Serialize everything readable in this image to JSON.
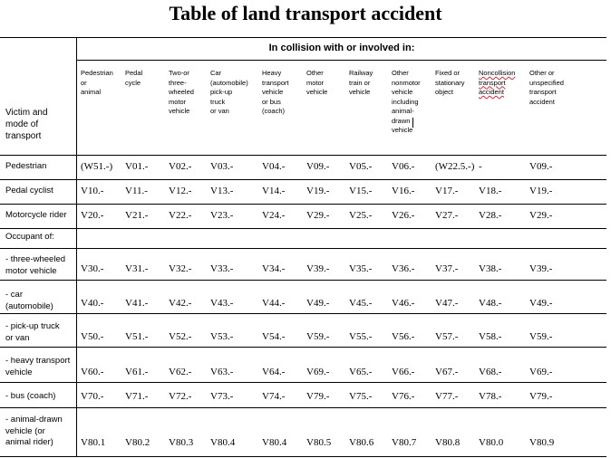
{
  "title": "Table of land transport accident",
  "group_header": "In collision with or involved in:",
  "victim_header": "Victim and\nmode of\ntransport",
  "columns": [
    "Pedestrian\nor\nanimal",
    "Pedal\ncycle",
    "Two-or\nthree-\nwheeled\nmotor\nvehicle",
    "Car\n(automobile)\npick-up\ntruck\nor van",
    "Heavy\ntransport\nvehicle\nor bus\n(coach)",
    "Other\nmotor\nvehicle",
    "Railway\ntrain or\nvehicle",
    "Other\nnonmotor\nvehicle\nincluding\nanimal-\ndrawn\nvehicle",
    "Fixed or\nstationary\nobject",
    "Noncollision\ntransport\naccident",
    "Other or\nunspecified\ntransport\naccident"
  ],
  "rows": [
    {
      "label": "Pedestrian",
      "codes": [
        "(W51.-)",
        "V01.-",
        "V02.-",
        "V03.-",
        "V04.-",
        "V09.-",
        "V05.-",
        "V06.-",
        "(W22.5.-)",
        "-",
        "V09.-"
      ]
    },
    {
      "label": "Pedal cyclist",
      "codes": [
        "V10.-",
        "V11.-",
        "V12.-",
        "V13.-",
        "V14.-",
        "V19.-",
        "V15.-",
        "V16.-",
        "V17.-",
        "V18.-",
        "V19.-"
      ]
    },
    {
      "label": "Motorcycle rider",
      "codes": [
        "V20.-",
        "V21.-",
        "V22.-",
        "V23.-",
        "V24.-",
        "V29.-",
        "V25.-",
        "V26.-",
        "V27.-",
        "V28.-",
        "V29.-"
      ]
    },
    {
      "label": "Occupant of:",
      "codes": []
    },
    {
      "label": "- three-wheeled\n  motor vehicle",
      "codes": [
        "V30.-",
        "V31.-",
        "V32.-",
        "V33.-",
        "V34.-",
        "V39.-",
        "V35.-",
        "V36.-",
        "V37.-",
        "V38.-",
        "V39.-"
      ]
    },
    {
      "label": "- car\n  (automobile)",
      "codes": [
        "V40.-",
        "V41.-",
        "V42.-",
        "V43.-",
        "V44.-",
        "V49.-",
        "V45.-",
        "V46.-",
        "V47.-",
        "V48.-",
        "V49.-"
      ]
    },
    {
      "label": "- pick-up truck\n  or van",
      "codes": [
        "V50.-",
        "V51.-",
        "V52.-",
        "V53.-",
        "V54.-",
        "V59.-",
        "V55.-",
        "V56.-",
        "V57.-",
        "V58.-",
        "V59.-"
      ]
    },
    {
      "label": "- heavy transport\n  vehicle",
      "codes": [
        "V60.-",
        "V61.-",
        "V62.-",
        "V63.-",
        "V64.-",
        "V69.-",
        "V65.-",
        "V66.-",
        "V67.-",
        "V68.-",
        "V69.-"
      ]
    },
    {
      "label": "- bus (coach)",
      "codes": [
        "V70.-",
        "V71.-",
        "V72.-",
        "V73.-",
        "V74.-",
        "V79.-",
        "V75.-",
        "V76.-",
        "V77.-",
        "V78.-",
        "V79.-"
      ]
    },
    {
      "label": "- animal-drawn\n  vehicle (or\n  animal rider)",
      "codes": [
        "V80.1",
        "V80.2",
        "V80.3",
        "V80.4",
        "V80.4",
        "V80.5",
        "V80.6",
        "V80.7",
        "V80.8",
        "V80.0",
        "V80.9"
      ]
    }
  ]
}
